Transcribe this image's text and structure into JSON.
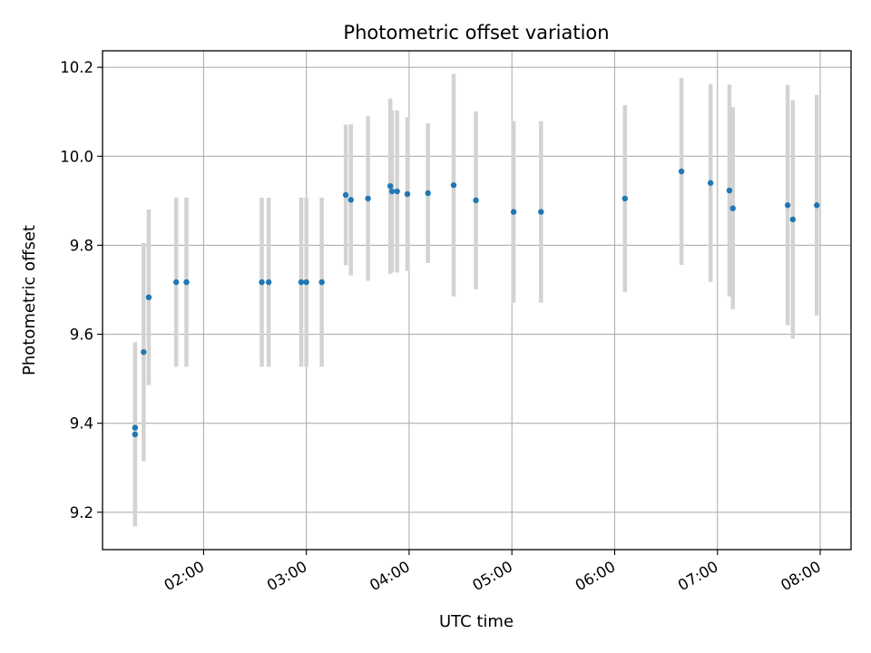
{
  "chart_data": {
    "type": "scatter",
    "title": "Photometric offset variation",
    "xlabel": "UTC time",
    "ylabel": "Photometric offset",
    "x_ticks": [
      "02:00",
      "03:00",
      "04:00",
      "05:00",
      "06:00",
      "07:00",
      "08:00"
    ],
    "y_ticks": [
      "9.2",
      "9.4",
      "9.6",
      "9.8",
      "10.0",
      "10.2"
    ],
    "xlim": [
      "01:01",
      "08:18"
    ],
    "ylim": [
      9.116,
      10.237
    ],
    "grid": true,
    "series": [
      {
        "marker_color": "#1f77b4",
        "errorbar_color": "#d3d3d3",
        "points": [
          {
            "x": "01:20",
            "y": 9.375,
            "err": 0.207
          },
          {
            "x": "01:20",
            "y": 9.39,
            "err": 0.19
          },
          {
            "x": "01:25",
            "y": 9.56,
            "err": 0.245
          },
          {
            "x": "01:28",
            "y": 9.683,
            "err": 0.197
          },
          {
            "x": "01:44",
            "y": 9.717,
            "err": 0.19
          },
          {
            "x": "01:50",
            "y": 9.717,
            "err": 0.19
          },
          {
            "x": "02:34",
            "y": 9.717,
            "err": 0.19
          },
          {
            "x": "02:38",
            "y": 9.717,
            "err": 0.19
          },
          {
            "x": "02:57",
            "y": 9.717,
            "err": 0.19
          },
          {
            "x": "03:00",
            "y": 9.717,
            "err": 0.19
          },
          {
            "x": "03:09",
            "y": 9.717,
            "err": 0.19
          },
          {
            "x": "03:23",
            "y": 9.913,
            "err": 0.158
          },
          {
            "x": "03:26",
            "y": 9.902,
            "err": 0.17
          },
          {
            "x": "03:36",
            "y": 9.905,
            "err": 0.185
          },
          {
            "x": "03:49",
            "y": 9.933,
            "err": 0.197
          },
          {
            "x": "03:50",
            "y": 9.921,
            "err": 0.182
          },
          {
            "x": "03:53",
            "y": 9.921,
            "err": 0.182
          },
          {
            "x": "03:59",
            "y": 9.915,
            "err": 0.173
          },
          {
            "x": "04:11",
            "y": 9.917,
            "err": 0.157
          },
          {
            "x": "04:26",
            "y": 9.935,
            "err": 0.25
          },
          {
            "x": "04:39",
            "y": 9.901,
            "err": 0.2
          },
          {
            "x": "05:01",
            "y": 9.875,
            "err": 0.204
          },
          {
            "x": "05:17",
            "y": 9.875,
            "err": 0.204
          },
          {
            "x": "06:06",
            "y": 9.905,
            "err": 0.21
          },
          {
            "x": "06:39",
            "y": 9.966,
            "err": 0.21
          },
          {
            "x": "06:56",
            "y": 9.94,
            "err": 0.222
          },
          {
            "x": "07:07",
            "y": 9.923,
            "err": 0.238
          },
          {
            "x": "07:09",
            "y": 9.883,
            "err": 0.227
          },
          {
            "x": "07:41",
            "y": 9.89,
            "err": 0.27
          },
          {
            "x": "07:44",
            "y": 9.858,
            "err": 0.268
          },
          {
            "x": "07:58",
            "y": 9.89,
            "err": 0.248
          }
        ]
      }
    ]
  }
}
